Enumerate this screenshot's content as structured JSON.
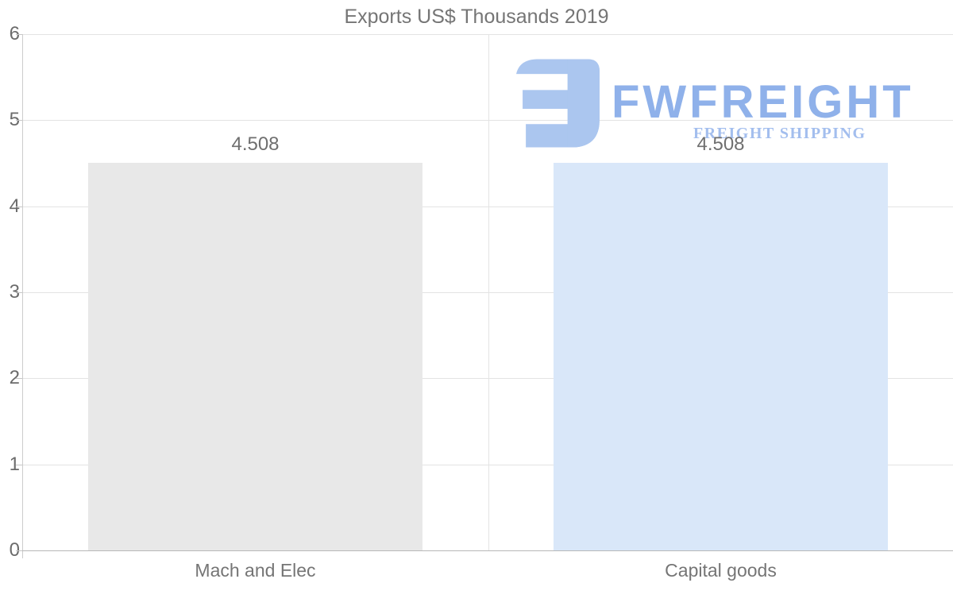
{
  "chart_data": {
    "type": "bar",
    "title": "Exports US$ Thousands 2019",
    "categories": [
      "Mach and Elec",
      "Capital goods"
    ],
    "values": [
      4.508,
      4.508
    ],
    "value_labels": [
      "4.508",
      "4.508"
    ],
    "bar_colors": [
      "#e8e8e8",
      "#d9e7f9"
    ],
    "xlabel": "",
    "ylabel": "",
    "ylim": [
      0,
      6
    ],
    "yticks": [
      6,
      5,
      4,
      3,
      2,
      1,
      0
    ],
    "grid": true,
    "legend": "none"
  },
  "watermark": {
    "icon": "fwfreight-logo-icon",
    "wordmark": "FWFREIGHT",
    "tagline": "FREIGHT SHIPPING",
    "brand_blue": "#8fb1ea",
    "icon_blue": "#abc6ef",
    "tagline_blue": "#a3beee"
  },
  "colors": {
    "title_text": "#757575",
    "axis_text": "#6b6b6b",
    "gridline": "#e3e3e3",
    "axis_line": "#b8b8b8",
    "bar_gray": "#e8e8e8",
    "bar_blue": "#d9e7f9"
  }
}
